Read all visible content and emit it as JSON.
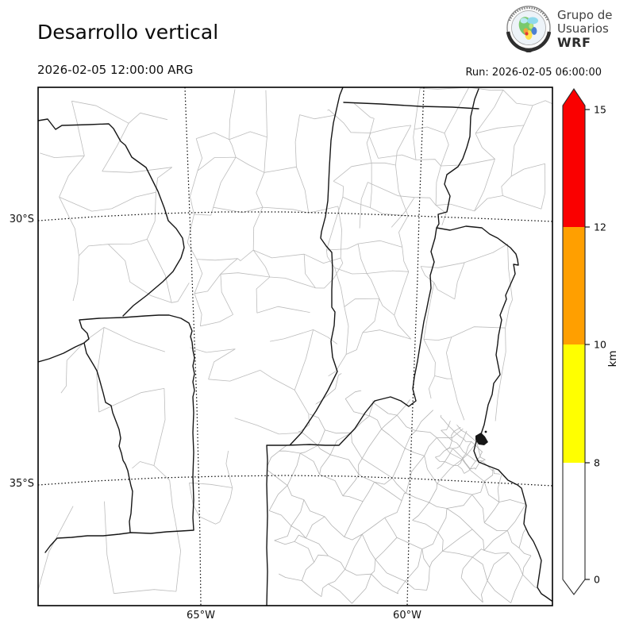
{
  "header": {
    "title": "Desarrollo vertical",
    "valid_time": "2026-02-05 12:00:00 ARG",
    "run_label": "Run: 2026-02-05 06:00:00",
    "logo": {
      "line1": "Grupo de",
      "line2": "Usuarios",
      "line3": "WRF"
    }
  },
  "map": {
    "lat_labels": [
      "30°S",
      "35°S"
    ],
    "lon_labels": [
      "65°W",
      "60°W"
    ]
  },
  "colorbar": {
    "unit": "km",
    "tick_labels": [
      "15",
      "12",
      "10",
      "8",
      "0"
    ],
    "segment_colors": [
      "#fa0000",
      "#ff9f00",
      "#ffff00",
      "#ffffff"
    ],
    "over_color": "#fa0000",
    "under_color": "#ffffff",
    "outline_color": "#2a2a2a"
  }
}
